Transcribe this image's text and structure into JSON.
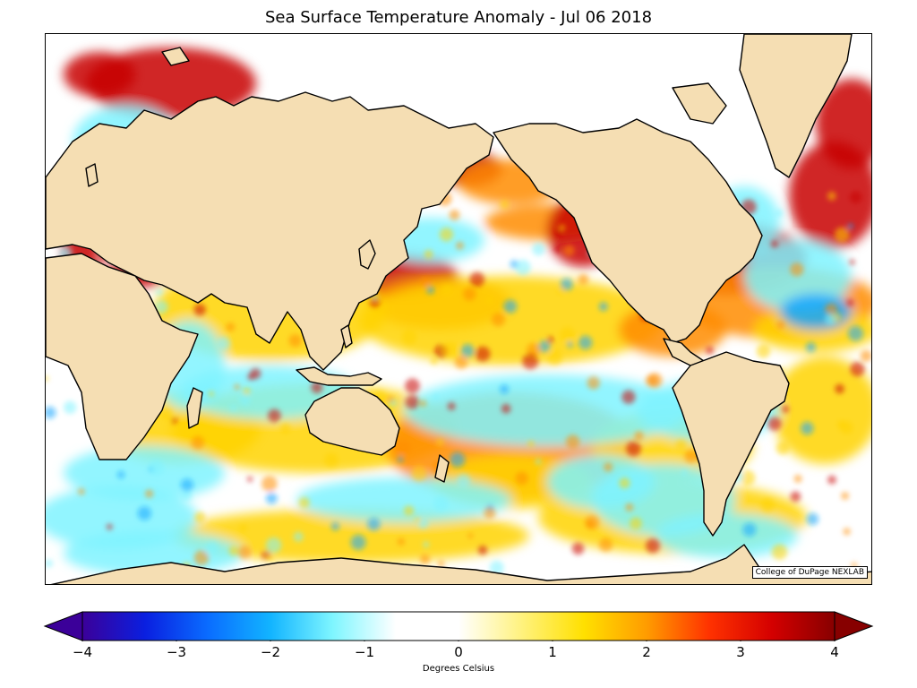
{
  "title": "Sea Surface Temperature Anomaly - Jul 06 2018",
  "credit": "College of DuPage NEXLAB",
  "colorbar": {
    "label": "Degrees Celsius",
    "ticks": [
      "−4",
      "−3",
      "−2",
      "−1",
      "0",
      "1",
      "2",
      "3",
      "4"
    ],
    "range": [
      -4,
      4
    ],
    "extend": "both",
    "colors": [
      "#3b0099",
      "#0a1fe0",
      "#0a6cff",
      "#12b4ff",
      "#7ff6ff",
      "#ffffff",
      "#ffffff",
      "#fff27f",
      "#ffe000",
      "#ff9c00",
      "#ff3200",
      "#d40000",
      "#870000"
    ]
  },
  "map": {
    "projection": "Pacific-centered cylindrical",
    "land_color": "#f5deb3",
    "coast_color": "#000000",
    "colors": {
      "hot": "#c80000",
      "warm": "#ff8c00",
      "mild": "#ffd400",
      "cool": "#7ff3ff",
      "cold": "#12a6ff"
    }
  }
}
